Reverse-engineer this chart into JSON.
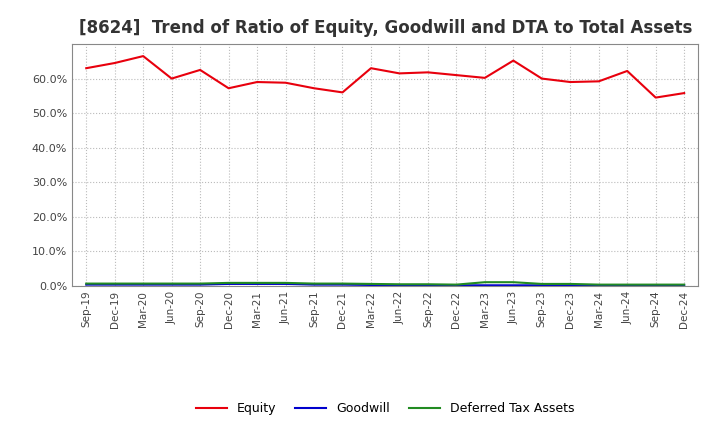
{
  "title": "[8624]  Trend of Ratio of Equity, Goodwill and DTA to Total Assets",
  "x_labels": [
    "Sep-19",
    "Dec-19",
    "Mar-20",
    "Jun-20",
    "Sep-20",
    "Dec-20",
    "Mar-21",
    "Jun-21",
    "Sep-21",
    "Dec-21",
    "Mar-22",
    "Jun-22",
    "Sep-22",
    "Dec-22",
    "Mar-23",
    "Jun-23",
    "Sep-23",
    "Dec-23",
    "Mar-24",
    "Jun-24",
    "Sep-24",
    "Dec-24"
  ],
  "equity": [
    0.63,
    0.645,
    0.665,
    0.6,
    0.625,
    0.572,
    0.59,
    0.588,
    0.572,
    0.56,
    0.63,
    0.615,
    0.618,
    0.61,
    0.602,
    0.652,
    0.6,
    0.59,
    0.592,
    0.622,
    0.545,
    0.558
  ],
  "goodwill": [
    0.004,
    0.004,
    0.004,
    0.004,
    0.004,
    0.006,
    0.006,
    0.006,
    0.004,
    0.004,
    0.003,
    0.002,
    0.002,
    0.002,
    0.002,
    0.002,
    0.002,
    0.002,
    0.002,
    0.002,
    0.002,
    0.002
  ],
  "dta": [
    0.007,
    0.007,
    0.007,
    0.007,
    0.007,
    0.009,
    0.009,
    0.009,
    0.007,
    0.007,
    0.006,
    0.005,
    0.005,
    0.004,
    0.011,
    0.011,
    0.006,
    0.006,
    0.004,
    0.004,
    0.004,
    0.004
  ],
  "equity_color": "#e8000d",
  "goodwill_color": "#0000cd",
  "dta_color": "#228B22",
  "ylim": [
    0.0,
    0.7
  ],
  "yticks": [
    0.0,
    0.1,
    0.2,
    0.3,
    0.4,
    0.5,
    0.6
  ],
  "background_color": "#ffffff",
  "plot_bg_color": "#ffffff",
  "grid_color": "#bbbbbb",
  "title_fontsize": 12,
  "legend_labels": [
    "Equity",
    "Goodwill",
    "Deferred Tax Assets"
  ],
  "tick_color": "#444444",
  "spine_color": "#888888"
}
